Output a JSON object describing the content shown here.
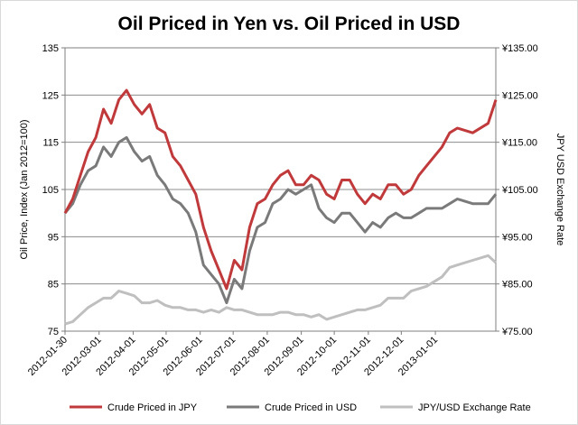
{
  "chart_data": {
    "type": "line",
    "title": "Oil Priced in Yen vs. Oil Priced in USD",
    "ylabel": "Oil Price, Index (Jan 2012=100)",
    "y2label": "JPY USD Exchange Rate",
    "ylim": [
      75,
      135
    ],
    "y2lim": [
      75,
      135
    ],
    "yticks": [
      "75",
      "85",
      "95",
      "105",
      "115",
      "125",
      "135"
    ],
    "y2ticks": [
      "¥75.00",
      "¥85.00",
      "¥95.00",
      "¥105.00",
      "¥115.00",
      "¥125.00",
      "¥135.00"
    ],
    "xlim": [
      "2012-01-30",
      "2013-02-25"
    ],
    "xticks": [
      "2012-01-30",
      "2012-03-01",
      "2012-04-01",
      "2012-05-01",
      "2012-06-01",
      "2012-07-01",
      "2012-08-01",
      "2012-09-01",
      "2012-10-01",
      "2012-11-01",
      "2012-12-01",
      "2013-01-01"
    ],
    "grid": "horizontal",
    "legend": "bottom",
    "colors": {
      "jpy": "#c0393b",
      "usd": "#7a7a7a",
      "fx": "#bfbfbf"
    },
    "series": [
      {
        "name": "Crude Priced in JPY",
        "axis": "left",
        "points": [
          [
            "2012-01-30",
            100
          ],
          [
            "2012-02-06",
            103
          ],
          [
            "2012-02-13",
            108
          ],
          [
            "2012-02-20",
            113
          ],
          [
            "2012-02-27",
            116
          ],
          [
            "2012-03-05",
            122
          ],
          [
            "2012-03-12",
            119
          ],
          [
            "2012-03-19",
            124
          ],
          [
            "2012-03-26",
            126
          ],
          [
            "2012-04-02",
            123
          ],
          [
            "2012-04-09",
            121
          ],
          [
            "2012-04-16",
            123
          ],
          [
            "2012-04-23",
            118
          ],
          [
            "2012-04-30",
            117
          ],
          [
            "2012-05-07",
            112
          ],
          [
            "2012-05-14",
            110
          ],
          [
            "2012-05-21",
            107
          ],
          [
            "2012-05-28",
            104
          ],
          [
            "2012-06-04",
            97
          ],
          [
            "2012-06-11",
            92
          ],
          [
            "2012-06-18",
            88
          ],
          [
            "2012-06-25",
            84
          ],
          [
            "2012-07-02",
            90
          ],
          [
            "2012-07-09",
            88
          ],
          [
            "2012-07-16",
            97
          ],
          [
            "2012-07-23",
            102
          ],
          [
            "2012-07-30",
            103
          ],
          [
            "2012-08-06",
            106
          ],
          [
            "2012-08-13",
            108
          ],
          [
            "2012-08-20",
            109
          ],
          [
            "2012-08-27",
            106
          ],
          [
            "2012-09-03",
            106
          ],
          [
            "2012-09-10",
            108
          ],
          [
            "2012-09-17",
            107
          ],
          [
            "2012-09-24",
            104
          ],
          [
            "2012-10-01",
            103
          ],
          [
            "2012-10-08",
            107
          ],
          [
            "2012-10-15",
            107
          ],
          [
            "2012-10-22",
            104
          ],
          [
            "2012-10-29",
            102
          ],
          [
            "2012-11-05",
            104
          ],
          [
            "2012-11-12",
            103
          ],
          [
            "2012-11-19",
            106
          ],
          [
            "2012-11-26",
            106
          ],
          [
            "2012-12-03",
            104
          ],
          [
            "2012-12-10",
            105
          ],
          [
            "2012-12-17",
            108
          ],
          [
            "2012-12-24",
            110
          ],
          [
            "2013-01-07",
            114
          ],
          [
            "2013-01-14",
            117
          ],
          [
            "2013-01-21",
            118
          ],
          [
            "2013-02-04",
            117
          ],
          [
            "2013-02-18",
            119
          ],
          [
            "2013-02-25",
            124
          ]
        ]
      },
      {
        "name": "Crude Priced in USD",
        "axis": "left",
        "points": [
          [
            "2012-01-30",
            100
          ],
          [
            "2012-02-06",
            102
          ],
          [
            "2012-02-13",
            106
          ],
          [
            "2012-02-20",
            109
          ],
          [
            "2012-02-27",
            110
          ],
          [
            "2012-03-05",
            114
          ],
          [
            "2012-03-12",
            112
          ],
          [
            "2012-03-19",
            115
          ],
          [
            "2012-03-26",
            116
          ],
          [
            "2012-04-02",
            113
          ],
          [
            "2012-04-09",
            111
          ],
          [
            "2012-04-16",
            112
          ],
          [
            "2012-04-23",
            108
          ],
          [
            "2012-04-30",
            106
          ],
          [
            "2012-05-07",
            103
          ],
          [
            "2012-05-14",
            102
          ],
          [
            "2012-05-21",
            100
          ],
          [
            "2012-05-28",
            96
          ],
          [
            "2012-06-04",
            89
          ],
          [
            "2012-06-11",
            87
          ],
          [
            "2012-06-18",
            85
          ],
          [
            "2012-06-25",
            81
          ],
          [
            "2012-07-02",
            86
          ],
          [
            "2012-07-09",
            84
          ],
          [
            "2012-07-16",
            92
          ],
          [
            "2012-07-23",
            97
          ],
          [
            "2012-07-30",
            98
          ],
          [
            "2012-08-06",
            102
          ],
          [
            "2012-08-13",
            103
          ],
          [
            "2012-08-20",
            105
          ],
          [
            "2012-08-27",
            104
          ],
          [
            "2012-09-03",
            105
          ],
          [
            "2012-09-10",
            106
          ],
          [
            "2012-09-17",
            101
          ],
          [
            "2012-09-24",
            99
          ],
          [
            "2012-10-01",
            98
          ],
          [
            "2012-10-08",
            100
          ],
          [
            "2012-10-15",
            100
          ],
          [
            "2012-10-22",
            98
          ],
          [
            "2012-10-29",
            96
          ],
          [
            "2012-11-05",
            98
          ],
          [
            "2012-11-12",
            97
          ],
          [
            "2012-11-19",
            99
          ],
          [
            "2012-11-26",
            100
          ],
          [
            "2012-12-03",
            99
          ],
          [
            "2012-12-10",
            99
          ],
          [
            "2012-12-17",
            100
          ],
          [
            "2012-12-24",
            101
          ],
          [
            "2013-01-07",
            101
          ],
          [
            "2013-01-14",
            102
          ],
          [
            "2013-01-21",
            103
          ],
          [
            "2013-02-04",
            102
          ],
          [
            "2013-02-18",
            102
          ],
          [
            "2013-02-25",
            104
          ]
        ]
      },
      {
        "name": "JPY/USD Exchange Rate",
        "axis": "right",
        "points": [
          [
            "2012-01-30",
            76.5
          ],
          [
            "2012-02-06",
            77
          ],
          [
            "2012-02-13",
            78.5
          ],
          [
            "2012-02-20",
            80
          ],
          [
            "2012-02-27",
            81
          ],
          [
            "2012-03-05",
            82
          ],
          [
            "2012-03-12",
            82
          ],
          [
            "2012-03-19",
            83.5
          ],
          [
            "2012-03-26",
            83
          ],
          [
            "2012-04-02",
            82.5
          ],
          [
            "2012-04-09",
            81
          ],
          [
            "2012-04-16",
            81
          ],
          [
            "2012-04-23",
            81.5
          ],
          [
            "2012-04-30",
            80.5
          ],
          [
            "2012-05-07",
            80
          ],
          [
            "2012-05-14",
            80
          ],
          [
            "2012-05-21",
            79.5
          ],
          [
            "2012-05-28",
            79.5
          ],
          [
            "2012-06-04",
            79
          ],
          [
            "2012-06-11",
            79.5
          ],
          [
            "2012-06-18",
            79
          ],
          [
            "2012-06-25",
            80
          ],
          [
            "2012-07-02",
            79.5
          ],
          [
            "2012-07-09",
            79.5
          ],
          [
            "2012-07-16",
            79
          ],
          [
            "2012-07-23",
            78.5
          ],
          [
            "2012-07-30",
            78.5
          ],
          [
            "2012-08-06",
            78.5
          ],
          [
            "2012-08-13",
            79
          ],
          [
            "2012-08-20",
            79
          ],
          [
            "2012-08-27",
            78.5
          ],
          [
            "2012-09-03",
            78.5
          ],
          [
            "2012-09-10",
            78
          ],
          [
            "2012-09-17",
            78.5
          ],
          [
            "2012-09-24",
            77.5
          ],
          [
            "2012-10-01",
            78
          ],
          [
            "2012-10-08",
            78.5
          ],
          [
            "2012-10-15",
            79
          ],
          [
            "2012-10-22",
            79.5
          ],
          [
            "2012-10-29",
            79.5
          ],
          [
            "2012-11-05",
            80
          ],
          [
            "2012-11-12",
            80.5
          ],
          [
            "2012-11-19",
            82
          ],
          [
            "2012-11-26",
            82
          ],
          [
            "2012-12-03",
            82
          ],
          [
            "2012-12-10",
            83.5
          ],
          [
            "2012-12-17",
            84
          ],
          [
            "2012-12-24",
            84.5
          ],
          [
            "2013-01-07",
            86.5
          ],
          [
            "2013-01-14",
            88.5
          ],
          [
            "2013-01-21",
            89
          ],
          [
            "2013-02-04",
            90
          ],
          [
            "2013-02-18",
            91
          ],
          [
            "2013-02-25",
            89.5
          ]
        ]
      }
    ]
  }
}
